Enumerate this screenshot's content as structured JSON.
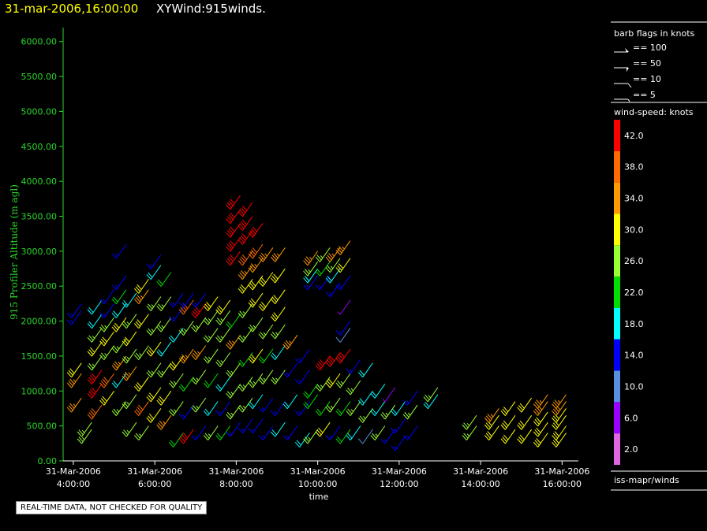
{
  "header": {
    "datetime": "31-mar-2006,16:00:00",
    "title": "XYWind:915winds.",
    "datetime_color": "#ffff00",
    "title_color": "#ffffff"
  },
  "note": "REAL-TIME DATA, NOT CHECKED FOR QUALITY",
  "legend": {
    "barb_title": "barb flags in knots",
    "barb_items": [
      "== 100",
      "== 50",
      "== 10",
      "== 5"
    ],
    "speed_title": "wind-speed: knots",
    "speed_levels": [
      {
        "label": "42.0",
        "color": "#ff0000"
      },
      {
        "label": "38.0",
        "color": "#ff6a00"
      },
      {
        "label": "34.0",
        "color": "#ff9900"
      },
      {
        "label": "30.0",
        "color": "#ffff00"
      },
      {
        "label": "26.0",
        "color": "#99ff33"
      },
      {
        "label": "22.0",
        "color": "#00dd00"
      },
      {
        "label": "18.0",
        "color": "#00ffff"
      },
      {
        "label": "14.0",
        "color": "#0000ff"
      },
      {
        "label": "10.0",
        "color": "#5a8fe0"
      },
      {
        "label": "6.0",
        "color": "#9900ff"
      },
      {
        "label": "2.0",
        "color": "#e066e0"
      }
    ],
    "source": "iss-mapr/winds"
  },
  "chart_data": {
    "type": "scatter",
    "ylabel": "915 Profiler Altitude (m agl)",
    "xlabel": "time",
    "ylim": [
      0,
      6200
    ],
    "yticks": [
      "0.00",
      "500.00",
      "1000.00",
      "1500.00",
      "2000.00",
      "2500.00",
      "3000.00",
      "3500.00",
      "4000.00",
      "4500.00",
      "5000.00",
      "5500.00",
      "6000.00"
    ],
    "xlim_hours": [
      3.75,
      16.4
    ],
    "xticks": [
      {
        "hour": 4,
        "date": "31-Mar-2006",
        "time": "4:00:00"
      },
      {
        "hour": 6,
        "date": "31-Mar-2006",
        "time": "6:00:00"
      },
      {
        "hour": 8,
        "date": "31-Mar-2006",
        "time": "8:00:00"
      },
      {
        "hour": 10,
        "date": "31-Mar-2006",
        "time": "10:00:00"
      },
      {
        "hour": 12,
        "date": "31-Mar-2006",
        "time": "12:00:00"
      },
      {
        "hour": 14,
        "date": "31-Mar-2006",
        "time": "14:00:00"
      },
      {
        "hour": 16,
        "date": "31-Mar-2006",
        "time": "16:00:00"
      }
    ],
    "series_note": "wind barbs: each column = one profile time; level = [altitude m, speed kt]",
    "profiles": [
      {
        "hour": 4.2,
        "levels": [
          [
            900,
            34
          ],
          [
            1250,
            34
          ],
          [
            1400,
            30
          ],
          [
            2150,
            14
          ],
          [
            2250,
            14
          ]
        ]
      },
      {
        "hour": 4.45,
        "levels": [
          [
            450,
            26
          ],
          [
            550,
            26
          ]
        ]
      },
      {
        "hour": 4.7,
        "levels": [
          [
            800,
            38
          ],
          [
            1100,
            42
          ],
          [
            1300,
            42
          ],
          [
            1500,
            26
          ],
          [
            1700,
            30
          ],
          [
            1900,
            26
          ],
          [
            2100,
            18
          ],
          [
            2300,
            18
          ]
        ]
      },
      {
        "hour": 5.0,
        "levels": [
          [
            1000,
            30
          ],
          [
            1250,
            38
          ],
          [
            1650,
            26
          ],
          [
            1850,
            30
          ],
          [
            2050,
            26
          ],
          [
            2250,
            14
          ],
          [
            2450,
            14
          ]
        ]
      },
      {
        "hour": 5.3,
        "levels": [
          [
            850,
            26
          ],
          [
            1250,
            18
          ],
          [
            1500,
            34
          ],
          [
            1750,
            26
          ],
          [
            2050,
            30
          ],
          [
            2250,
            18
          ],
          [
            2450,
            22
          ],
          [
            2650,
            14
          ],
          [
            3100,
            14
          ]
        ]
      },
      {
        "hour": 5.55,
        "levels": [
          [
            550,
            26
          ],
          [
            950,
            26
          ],
          [
            1350,
            34
          ],
          [
            1600,
            26
          ],
          [
            1850,
            30
          ],
          [
            2100,
            26
          ],
          [
            2400,
            18
          ]
        ]
      },
      {
        "hour": 5.85,
        "levels": [
          [
            500,
            26
          ],
          [
            850,
            38
          ],
          [
            1200,
            30
          ],
          [
            1650,
            26
          ],
          [
            2100,
            30
          ],
          [
            2450,
            34
          ],
          [
            2600,
            30
          ]
        ]
      },
      {
        "hour": 6.15,
        "levels": [
          [
            750,
            30
          ],
          [
            1050,
            30
          ],
          [
            1400,
            26
          ],
          [
            1700,
            30
          ],
          [
            2000,
            26
          ],
          [
            2350,
            26
          ],
          [
            2800,
            18
          ],
          [
            2950,
            14
          ]
        ]
      },
      {
        "hour": 6.4,
        "levels": [
          [
            650,
            34
          ],
          [
            1000,
            30
          ],
          [
            1400,
            26
          ],
          [
            1700,
            18
          ],
          [
            2050,
            26
          ],
          [
            2350,
            26
          ],
          [
            2700,
            22
          ]
        ]
      },
      {
        "hour": 6.7,
        "levels": [
          [
            400,
            22
          ],
          [
            850,
            26
          ],
          [
            1250,
            26
          ],
          [
            1500,
            30
          ],
          [
            1900,
            18
          ],
          [
            2200,
            14
          ],
          [
            2400,
            14
          ]
        ]
      },
      {
        "hour": 6.95,
        "levels": [
          [
            450,
            42
          ],
          [
            800,
            14
          ],
          [
            1200,
            22
          ],
          [
            1600,
            34
          ],
          [
            2000,
            26
          ],
          [
            2300,
            38
          ],
          [
            2400,
            14
          ]
        ]
      },
      {
        "hour": 7.25,
        "levels": [
          [
            500,
            14
          ],
          [
            900,
            26
          ],
          [
            1300,
            26
          ],
          [
            1650,
            34
          ],
          [
            2050,
            26
          ],
          [
            2250,
            42
          ],
          [
            2400,
            14
          ]
        ]
      },
      {
        "hour": 7.55,
        "levels": [
          [
            500,
            26
          ],
          [
            850,
            18
          ],
          [
            1250,
            22
          ],
          [
            1600,
            26
          ],
          [
            1900,
            26
          ],
          [
            2150,
            26
          ],
          [
            2350,
            30
          ]
        ]
      },
      {
        "hour": 7.85,
        "levels": [
          [
            500,
            22
          ],
          [
            850,
            14
          ],
          [
            1200,
            18
          ],
          [
            1550,
            26
          ],
          [
            1900,
            26
          ],
          [
            2150,
            26
          ],
          [
            2300,
            30
          ]
        ]
      },
      {
        "hour": 8.1,
        "levels": [
          [
            550,
            14
          ],
          [
            800,
            26
          ],
          [
            1100,
            26
          ],
          [
            1400,
            26
          ],
          [
            1800,
            34
          ],
          [
            2100,
            22
          ],
          [
            3000,
            42
          ],
          [
            3200,
            42
          ],
          [
            3400,
            42
          ],
          [
            3600,
            42
          ],
          [
            3800,
            42
          ]
        ]
      },
      {
        "hour": 8.4,
        "levels": [
          [
            600,
            14
          ],
          [
            900,
            26
          ],
          [
            1200,
            26
          ],
          [
            1550,
            22
          ],
          [
            1900,
            26
          ],
          [
            2250,
            26
          ],
          [
            2600,
            30
          ],
          [
            2800,
            34
          ],
          [
            3000,
            38
          ],
          [
            3300,
            42
          ],
          [
            3500,
            42
          ],
          [
            3700,
            42
          ]
        ]
      },
      {
        "hour": 8.65,
        "levels": [
          [
            600,
            14
          ],
          [
            950,
            18
          ],
          [
            1250,
            26
          ],
          [
            1600,
            30
          ],
          [
            2050,
            26
          ],
          [
            2400,
            30
          ],
          [
            2650,
            30
          ],
          [
            2900,
            34
          ],
          [
            3100,
            38
          ],
          [
            3400,
            42
          ]
        ]
      },
      {
        "hour": 8.9,
        "levels": [
          [
            500,
            14
          ],
          [
            900,
            14
          ],
          [
            1300,
            26
          ],
          [
            1600,
            22
          ],
          [
            1950,
            26
          ],
          [
            2350,
            30
          ],
          [
            2700,
            30
          ],
          [
            3050,
            34
          ]
        ]
      },
      {
        "hour": 9.2,
        "levels": [
          [
            550,
            18
          ],
          [
            850,
            14
          ],
          [
            1300,
            26
          ],
          [
            1650,
            18
          ],
          [
            1950,
            26
          ],
          [
            2200,
            30
          ],
          [
            2450,
            30
          ],
          [
            2750,
            30
          ],
          [
            3050,
            34
          ]
        ]
      },
      {
        "hour": 9.5,
        "levels": [
          [
            500,
            14
          ],
          [
            950,
            18
          ],
          [
            1400,
            14
          ],
          [
            1800,
            34
          ]
        ]
      },
      {
        "hour": 9.8,
        "levels": [
          [
            400,
            18
          ],
          [
            850,
            14
          ],
          [
            1300,
            14
          ],
          [
            1600,
            14
          ]
        ]
      },
      {
        "hour": 10.0,
        "levels": [
          [
            450,
            26
          ],
          [
            950,
            22
          ],
          [
            1100,
            22
          ],
          [
            2650,
            14
          ],
          [
            2750,
            18
          ],
          [
            2850,
            26
          ],
          [
            3000,
            34
          ]
        ]
      },
      {
        "hour": 10.3,
        "levels": [
          [
            550,
            30
          ],
          [
            850,
            22
          ],
          [
            1200,
            26
          ],
          [
            1500,
            42
          ],
          [
            2650,
            14
          ],
          [
            2850,
            22
          ],
          [
            3050,
            26
          ]
        ]
      },
      {
        "hour": 10.55,
        "levels": [
          [
            500,
            14
          ],
          [
            900,
            26
          ],
          [
            1250,
            30
          ],
          [
            1550,
            42
          ],
          [
            2550,
            14
          ],
          [
            2750,
            18
          ],
          [
            2900,
            26
          ],
          [
            3050,
            34
          ]
        ]
      },
      {
        "hour": 10.8,
        "levels": [
          [
            450,
            22
          ],
          [
            850,
            22
          ],
          [
            1250,
            26
          ],
          [
            1600,
            42
          ],
          [
            2300,
            6
          ],
          [
            2650,
            14
          ],
          [
            2900,
            30
          ],
          [
            3150,
            34
          ],
          [
            2000,
            14
          ],
          [
            1900,
            10
          ]
        ]
      },
      {
        "hour": 11.05,
        "levels": [
          [
            500,
            18
          ],
          [
            850,
            26
          ],
          [
            1150,
            26
          ],
          [
            1450,
            14
          ]
        ]
      },
      {
        "hour": 11.35,
        "levels": [
          [
            450,
            10
          ],
          [
            750,
            26
          ],
          [
            1000,
            18
          ],
          [
            1400,
            18
          ]
        ]
      },
      {
        "hour": 11.65,
        "levels": [
          [
            500,
            26
          ],
          [
            850,
            18
          ],
          [
            1100,
            18
          ]
        ]
      },
      {
        "hour": 11.9,
        "levels": [
          [
            450,
            14
          ],
          [
            800,
            26
          ],
          [
            1050,
            6
          ]
        ]
      },
      {
        "hour": 12.15,
        "levels": [
          [
            350,
            14
          ],
          [
            600,
            14
          ],
          [
            850,
            18
          ]
        ]
      },
      {
        "hour": 12.45,
        "levels": [
          [
            500,
            14
          ],
          [
            800,
            26
          ],
          [
            1000,
            14
          ]
        ]
      },
      {
        "hour": 12.95,
        "levels": [
          [
            950,
            18
          ],
          [
            1050,
            26
          ]
        ]
      },
      {
        "hour": 13.9,
        "levels": [
          [
            500,
            26
          ],
          [
            650,
            26
          ]
        ]
      },
      {
        "hour": 14.45,
        "levels": [
          [
            500,
            30
          ],
          [
            650,
            30
          ],
          [
            750,
            34
          ]
        ]
      },
      {
        "hour": 14.85,
        "levels": [
          [
            450,
            30
          ],
          [
            650,
            30
          ],
          [
            850,
            30
          ]
        ]
      },
      {
        "hour": 15.25,
        "levels": [
          [
            450,
            30
          ],
          [
            650,
            30
          ],
          [
            900,
            30
          ]
        ]
      },
      {
        "hour": 15.65,
        "levels": [
          [
            400,
            30
          ],
          [
            550,
            30
          ],
          [
            700,
            30
          ],
          [
            850,
            34
          ],
          [
            950,
            34
          ]
        ]
      },
      {
        "hour": 16.1,
        "levels": [
          [
            400,
            30
          ],
          [
            500,
            30
          ],
          [
            650,
            30
          ],
          [
            750,
            30
          ],
          [
            850,
            34
          ],
          [
            950,
            34
          ]
        ]
      }
    ]
  }
}
